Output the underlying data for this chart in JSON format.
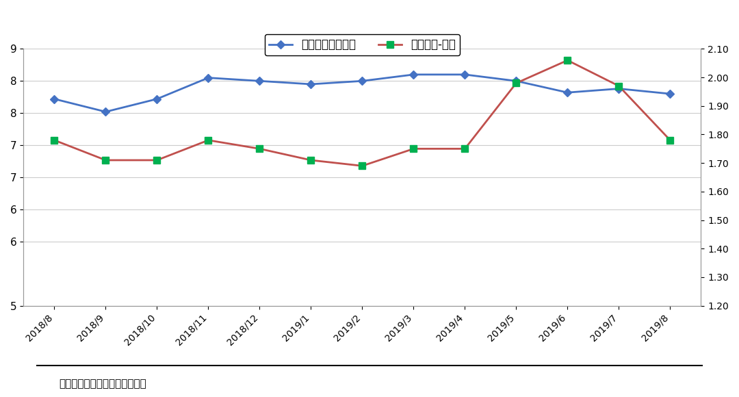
{
  "categories": [
    "2018/8",
    "2018/9",
    "2018/10",
    "2018/11",
    "2018/12",
    "2019/1",
    "2019/2",
    "2019/3",
    "2019/4",
    "2019/5",
    "2019/6",
    "2019/7",
    "2019/8"
  ],
  "blue_values": [
    8.22,
    8.02,
    8.22,
    8.55,
    8.5,
    8.45,
    8.5,
    8.6,
    8.6,
    8.5,
    8.32,
    8.38,
    8.3
  ],
  "red_values": [
    1.78,
    1.71,
    1.71,
    1.78,
    1.75,
    1.71,
    1.69,
    1.75,
    1.75,
    1.98,
    2.06,
    1.97,
    1.78
  ],
  "blue_color": "#4472C4",
  "red_color": "#C0504D",
  "green_marker_color": "#00B050",
  "left_ylim": [
    5,
    9
  ],
  "left_yticks": [
    5,
    6,
    6,
    7,
    7,
    8,
    8,
    9
  ],
  "right_ylim": [
    1.2,
    2.1
  ],
  "right_yticks": [
    1.2,
    1.3,
    1.4,
    1.5,
    1.6,
    1.7,
    1.8,
    1.9,
    2.0,
    2.1
  ],
  "legend_label_blue": "平均预期年收益率",
  "legend_label_red": "平均期限-右轴",
  "source_text": "数据来源：用益金融信托研究院",
  "bg_color": "#FFFFFF",
  "grid_color": "#CCCCCC"
}
